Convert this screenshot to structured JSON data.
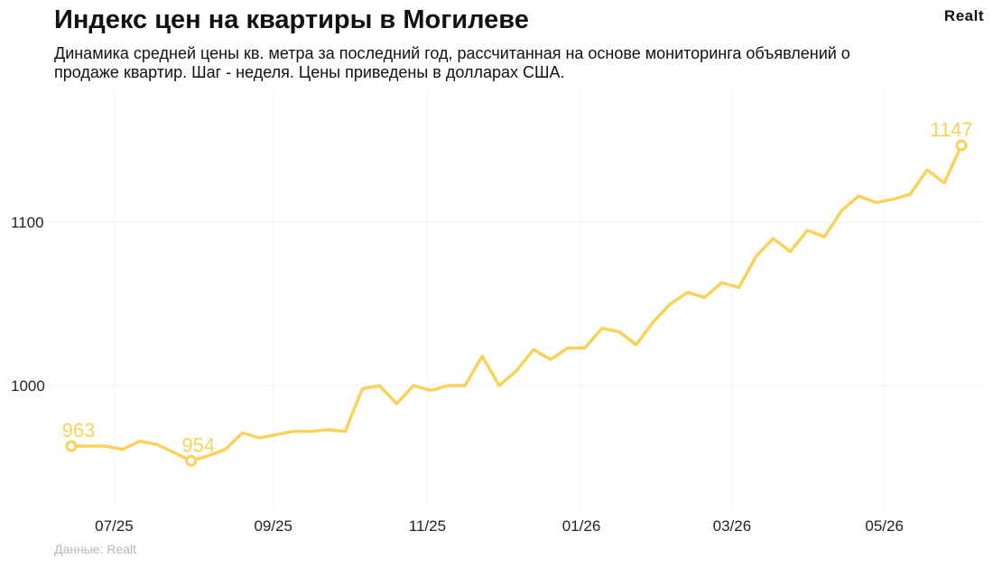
{
  "header": {
    "title": "Индекс цен на квартиры в Могилеве",
    "logo": "Realt",
    "subtitle": "Динамика средней цены кв. метра за последний год, рассчитанная на основе мониторинга объявлений о продаже квартир. Шаг - неделя. Цены приведены в долларах США."
  },
  "footer": {
    "source": "Данные: Realt"
  },
  "colors": {
    "line": "#FAD159",
    "grid": "#f2f2f2"
  },
  "chart_data": {
    "type": "line",
    "title": "Индекс цен на квартиры в Могилеве",
    "xlabel": "",
    "ylabel": "",
    "x_ticks": [
      "07/25",
      "09/25",
      "11/25",
      "01/26",
      "03/26",
      "05/26"
    ],
    "y_ticks": [
      1000,
      1100
    ],
    "ylim": [
      940,
      1175
    ],
    "grid": true,
    "legend": "none",
    "series": [
      {
        "values": [
          963,
          963,
          963,
          961,
          966,
          964,
          959,
          954,
          957,
          961,
          971,
          968,
          970,
          972,
          972,
          973,
          972,
          998,
          1000,
          989,
          1000,
          997,
          1000,
          1000,
          1018,
          1000,
          1009,
          1022,
          1016,
          1023,
          1023,
          1035,
          1033,
          1025,
          1039,
          1050,
          1057,
          1054,
          1063,
          1060,
          1079,
          1090,
          1082,
          1095,
          1091,
          1107,
          1116,
          1112,
          1114,
          1117,
          1132,
          1124,
          1147
        ]
      }
    ],
    "annotations": [
      {
        "index": 0,
        "text": "963"
      },
      {
        "index": 7,
        "text": "954"
      },
      {
        "index": 52,
        "text": "1147"
      }
    ]
  }
}
